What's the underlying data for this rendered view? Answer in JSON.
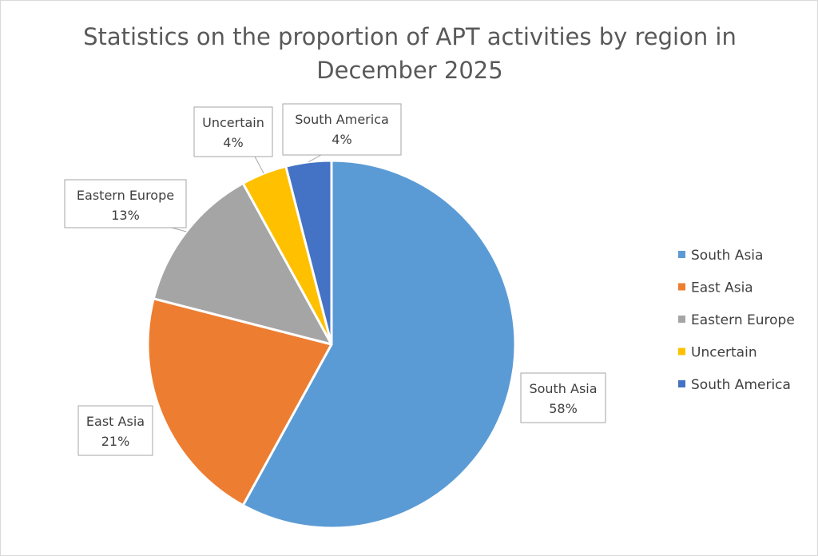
{
  "chart_data": {
    "type": "pie",
    "title": "Statistics on the proportion of APT activities by region in December 2025",
    "categories": [
      "South Asia",
      "East Asia",
      "Eastern Europe",
      "Uncertain",
      "South America"
    ],
    "values": [
      58,
      21,
      13,
      4,
      4
    ],
    "data_labels": [
      "58%",
      "21%",
      "13%",
      "4%",
      "4%"
    ],
    "colors": [
      "#5b9bd5",
      "#ed7d31",
      "#a5a5a5",
      "#ffc000",
      "#4472c4"
    ],
    "legend_position": "right",
    "start_angle": "12 o'clock",
    "direction": "clockwise"
  }
}
